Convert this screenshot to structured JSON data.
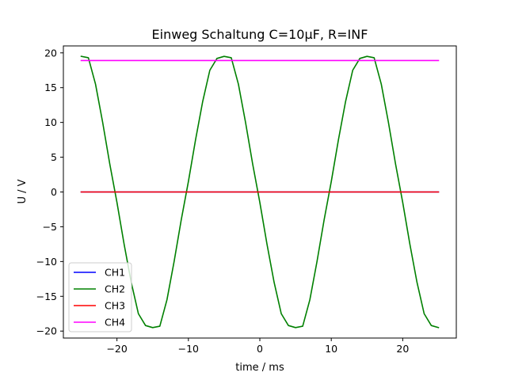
{
  "chart_data": {
    "type": "line",
    "title": "Einweg Schaltung C=10µF, R=INF",
    "xlabel": "time / ms",
    "ylabel": "U / V",
    "xlim": [
      -27.5,
      27.5
    ],
    "ylim": [
      -21.0,
      21.0
    ],
    "x_ticks": [
      -20,
      -10,
      0,
      10,
      20
    ],
    "x_tick_labels": [
      "−20",
      "−10",
      "0",
      "10",
      "20"
    ],
    "y_ticks": [
      -20,
      -15,
      -10,
      -5,
      0,
      5,
      10,
      15,
      20
    ],
    "y_tick_labels": [
      "−20",
      "−15",
      "−10",
      "−5",
      "0",
      "5",
      "10",
      "15",
      "20"
    ],
    "grid": false,
    "legend_position": "lower left",
    "series": [
      {
        "name": "CH1",
        "color": "#0000ff",
        "x": [
          -25,
          25
        ],
        "y": [
          0,
          0
        ]
      },
      {
        "name": "CH2",
        "color": "#008000",
        "x": [
          -25.0,
          -24.0,
          -23.0,
          -22.0,
          -21.0,
          -20.0,
          -19.0,
          -18.0,
          -17.0,
          -16.0,
          -15.0,
          -14.0,
          -13.0,
          -12.0,
          -11.0,
          -10.0,
          -9.0,
          -8.0,
          -7.0,
          -6.0,
          -5.0,
          -4.0,
          -3.0,
          -2.0,
          -1.0,
          0.0,
          1.0,
          2.0,
          3.0,
          4.0,
          5.0,
          6.0,
          7.0,
          8.0,
          9.0,
          10.0,
          11.0,
          12.0,
          13.0,
          14.0,
          15.0,
          16.0,
          17.0,
          18.0,
          19.0,
          20.0,
          21.0,
          22.0,
          23.0,
          24.0,
          25.0
        ],
        "y": [
          19.5,
          19.3,
          15.5,
          10.0,
          4.0,
          -1.5,
          -7.5,
          -13.0,
          -17.5,
          -19.2,
          -19.5,
          -19.3,
          -15.5,
          -10.0,
          -4.0,
          1.5,
          7.5,
          13.0,
          17.5,
          19.2,
          19.5,
          19.3,
          15.5,
          10.0,
          4.0,
          -1.5,
          -7.5,
          -13.0,
          -17.5,
          -19.2,
          -19.5,
          -19.3,
          -15.5,
          -10.0,
          -4.0,
          1.5,
          7.5,
          13.0,
          17.5,
          19.2,
          19.5,
          19.3,
          15.5,
          10.0,
          4.0,
          -1.5,
          -7.5,
          -13.0,
          -17.5,
          -19.2,
          -19.5
        ]
      },
      {
        "name": "CH3",
        "color": "#ff0000",
        "x": [
          -25,
          25
        ],
        "y": [
          0,
          0
        ]
      },
      {
        "name": "CH4",
        "color": "#ff00ff",
        "x": [
          -25,
          25
        ],
        "y": [
          18.9,
          18.9
        ]
      }
    ]
  }
}
